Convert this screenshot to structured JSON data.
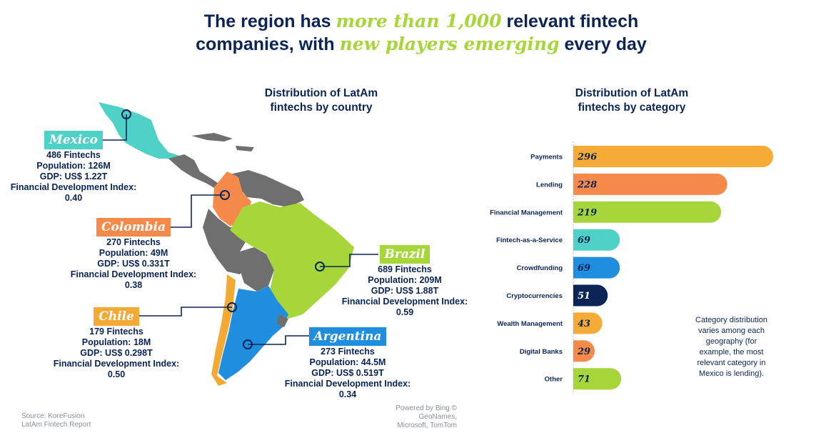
{
  "headline": {
    "line1_a": "The region has ",
    "line1_accent": "more than 1,000",
    "line1_b": " relevant fintech",
    "line2_a": "companies, with ",
    "line2_accent": "new players emerging",
    "line2_b": " every day"
  },
  "map_section": {
    "title_l1": "Distribution of LatAm",
    "title_l2": "fintechs by country",
    "countries": [
      {
        "key": "mexico",
        "name": "Mexico",
        "color": "#4fd1c8",
        "lines": [
          "486 Fintechs",
          "Population: 126M",
          "GDP: US$ 1.22T",
          "Financial Development Index:",
          "0.40"
        ]
      },
      {
        "key": "colombia",
        "name": "Colombia",
        "color": "#f58a4b",
        "lines": [
          "270 Fintechs",
          "Population: 49M",
          "GDP: US$ 0.331T",
          "Financial Development Index:",
          "0.38"
        ]
      },
      {
        "key": "brazil",
        "name": "Brazil",
        "color": "#a6d63a",
        "lines": [
          "689 Fintechs",
          "Population: 209M",
          "GDP: US$ 1.88T",
          "Financial Development Index:",
          "0.59"
        ]
      },
      {
        "key": "chile",
        "name": "Chile",
        "color": "#f5a935",
        "lines": [
          "179 Fintechs",
          "Population: 18M",
          "GDP: US$ 0.298T",
          "Financial Development Index:",
          "0.50"
        ]
      },
      {
        "key": "argentina",
        "name": "Argentina",
        "color": "#1f8ede",
        "lines": [
          "273 Fintechs",
          "Population: 44.5M",
          "GDP: US$ 0.519T",
          "Financial Development Index:",
          "0.34"
        ]
      }
    ],
    "other_country_color": "#6f6f6f"
  },
  "chart_data": {
    "type": "bar",
    "orientation": "horizontal",
    "title": "Distribution of LatAm fintechs by category",
    "categories": [
      "Payments",
      "Lending",
      "Financial Management",
      "Fintech-as-a-Service",
      "Crowdfunding",
      "Cryptocurrencies",
      "Wealth Management",
      "Digital Banks",
      "Other"
    ],
    "values": [
      296,
      228,
      219,
      69,
      69,
      51,
      43,
      29,
      71
    ],
    "colors": [
      "#f5ab35",
      "#f58a4b",
      "#a6d63a",
      "#4fd1c8",
      "#1f8ede",
      "#0b2456",
      "#f5ab35",
      "#f58a4b",
      "#a6d63a"
    ],
    "value_text_colors": [
      "#0b2456",
      "#0b2456",
      "#0b2456",
      "#0b2456",
      "#0b2456",
      "#ffffff",
      "#0b2456",
      "#0b2456",
      "#0b2456"
    ],
    "xlim": [
      0,
      300
    ],
    "grid": false,
    "data_labels": true
  },
  "note": {
    "lines": [
      "Category distribution",
      "varies among each",
      "geography (for",
      "example, the most",
      "relevant category in",
      "Mexico is lending)."
    ]
  },
  "source": {
    "lines": [
      "Source: KoreFusion",
      "LatAm Fintech Report"
    ]
  },
  "credit": {
    "lines": [
      "Powered by Bing ©",
      "GeoNames,",
      "Microsoft, TomTom"
    ]
  }
}
